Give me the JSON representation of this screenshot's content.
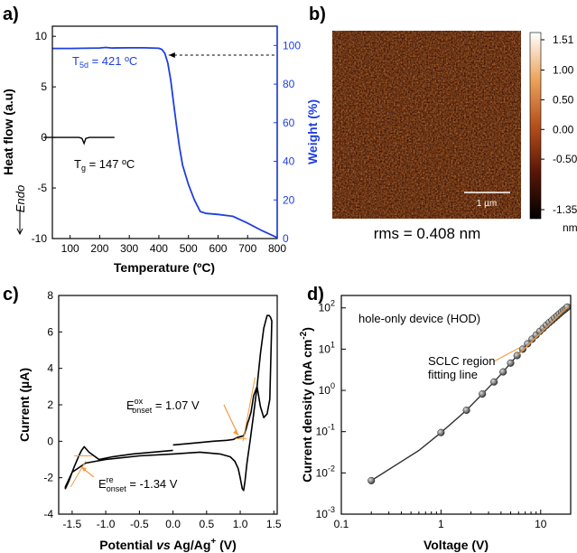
{
  "colors": {
    "curve_blue": "#1f3fe0",
    "orange": "#f29b3c",
    "black": "#000000"
  },
  "chart_data": [
    {
      "panel": "a)",
      "type": "line",
      "xlabel": "Temperature (ºC)",
      "xlim": [
        40,
        800
      ],
      "xticks": [
        "100",
        "200",
        "300",
        "400",
        "500",
        "600",
        "700",
        "800"
      ],
      "ylabel_left": "Heat flow (a.u)",
      "ylim_left": [
        -10,
        11
      ],
      "yticks_left": [
        "-10",
        "-5",
        "0",
        "5",
        "10"
      ],
      "ylabel_right": "Weight (%)",
      "ylim_right": [
        0,
        110
      ],
      "yticks_right": [
        "0",
        "20",
        "40",
        "60",
        "80",
        "100"
      ],
      "endo_label": "Endo",
      "annotations": {
        "t5d_base": "T",
        "t5d_sub": "5d",
        "t5d_val": " = 421 ºC",
        "tg_base": "T",
        "tg_sub": "g",
        "tg_val": " = 147 ºC"
      },
      "series": [
        {
          "axis": "right",
          "x": [
            40,
            100,
            150,
            200,
            220,
            240,
            300,
            350,
            400,
            410,
            420,
            430,
            440,
            450,
            460,
            470,
            480,
            500,
            520,
            540,
            560,
            600,
            650,
            700,
            750,
            800
          ],
          "y": [
            98.5,
            98.5,
            98.6,
            98.7,
            99.0,
            98.7,
            98.8,
            98.8,
            98.6,
            98.0,
            96.0,
            91.0,
            82.0,
            70.0,
            58.0,
            47.0,
            38.0,
            28.0,
            20.0,
            14.0,
            13.0,
            12.5,
            11.5,
            8.0,
            4.0,
            0.5
          ]
        },
        {
          "axis": "left",
          "x": [
            10,
            100,
            130,
            140,
            147,
            153,
            165,
            250
          ],
          "y": [
            0,
            0,
            0,
            -0.1,
            -0.6,
            -0.1,
            0,
            0
          ]
        }
      ]
    },
    {
      "panel": "b)",
      "type": "heatmap",
      "colorbar_ticks": [
        "1.51",
        "1.00",
        "0.50",
        "0.00",
        "-0.50",
        "-1.35"
      ],
      "colorbar_unit": "nm",
      "scalebar": "1 µm",
      "caption": "rms = 0.408 nm"
    },
    {
      "panel": "c)",
      "type": "line",
      "xlabel_parts": [
        "Potential ",
        "vs",
        " Ag/Ag",
        "+",
        " (V)"
      ],
      "xlim": [
        -1.7,
        1.55
      ],
      "xticks": [
        "-1.5",
        "-1.0",
        "-0.5",
        "0.0",
        "0.5",
        "1.0",
        "1.5"
      ],
      "ylabel": "Current (µA)",
      "ylim": [
        -4,
        8
      ],
      "yticks": [
        "-4",
        "-2",
        "0",
        "2",
        "4",
        "6",
        "8"
      ],
      "annotations": {
        "ox_base": "E",
        "ox_sup": "ox",
        "ox_sub": "onset",
        "ox_val": " = 1.07 V",
        "re_base": "E",
        "re_sup": "re",
        "re_sub": "onset",
        "re_val": " = -1.34 V"
      },
      "cv_x": [
        0.0,
        -0.3,
        -0.6,
        -0.9,
        -1.1,
        -1.25,
        -1.32,
        -1.36,
        -1.4,
        -1.48,
        -1.55,
        -1.6,
        -1.6,
        -1.5,
        -1.3,
        -1.0,
        -0.5,
        0.0,
        0.4,
        0.7,
        0.85,
        0.92,
        0.97,
        1.0,
        1.03,
        1.05,
        1.07,
        1.1,
        1.15,
        1.2,
        1.25,
        1.3,
        1.35,
        1.4,
        1.43,
        1.45,
        1.47,
        1.44,
        1.4,
        1.35,
        1.3,
        1.25,
        1.2,
        1.16,
        1.13,
        1.11,
        1.09,
        1.07,
        1.05,
        1.0,
        0.95,
        0.9,
        0.8,
        0.6,
        0.3,
        0.0
      ],
      "cv_y": [
        -0.5,
        -0.6,
        -0.7,
        -0.85,
        -1.0,
        -0.6,
        -0.3,
        -0.5,
        -0.8,
        -1.5,
        -2.2,
        -2.6,
        -2.5,
        -1.7,
        -1.2,
        -1.0,
        -0.8,
        -0.7,
        -0.6,
        -0.7,
        -0.85,
        -1.1,
        -1.5,
        -2.0,
        -2.6,
        -2.7,
        -2.2,
        -1.2,
        0.1,
        1.5,
        3.0,
        4.8,
        6.2,
        6.9,
        6.9,
        6.8,
        6.6,
        2.3,
        1.5,
        1.3,
        1.9,
        3.0,
        2.5,
        1.6,
        1.2,
        1.0,
        0.7,
        0.5,
        0.3,
        0.25,
        0.2,
        0.1,
        0.05,
        0.0,
        -0.1,
        -0.2
      ],
      "tangents": [
        {
          "x": [
            0.93,
            1.1
          ],
          "y": [
            0.15,
            0.15
          ]
        },
        {
          "x": [
            1.04,
            1.22
          ],
          "y": [
            0.0,
            3.5
          ]
        },
        {
          "x": [
            -1.47,
            -1.2
          ],
          "y": [
            -0.8,
            -0.8
          ]
        },
        {
          "x": [
            -1.52,
            -1.3
          ],
          "y": [
            -2.5,
            -1.1
          ]
        }
      ]
    },
    {
      "panel": "d)",
      "type": "scatter",
      "xlabel": "Voltage (V)",
      "xscale": "log",
      "xlim": [
        0.1,
        20
      ],
      "xticks": [
        "0.1",
        "1",
        "10"
      ],
      "ylabel_parts": [
        "Current density (mA cm",
        "-2",
        ")"
      ],
      "yscale": "log",
      "ylim": [
        0.001,
        200
      ],
      "yticks": [
        {
          "base": "10",
          "exp": "-3"
        },
        {
          "base": "10",
          "exp": "-2"
        },
        {
          "base": "10",
          "exp": "-1"
        },
        {
          "base": "10",
          "exp": "0"
        },
        {
          "base": "10",
          "exp": "1"
        },
        {
          "base": "10",
          "exp": "2"
        }
      ],
      "legend": "hole-only device (HOD)",
      "annotation_line1": "SCLC region",
      "annotation_line2": "fitting line",
      "x": [
        0.2,
        1.0,
        1.8,
        2.6,
        3.4,
        4.2,
        5.0,
        5.8,
        6.6,
        7.4,
        8.2,
        9.0,
        9.8,
        10.6,
        11.4,
        12.2,
        13.0,
        13.8,
        14.6,
        15.4,
        16.2,
        17.0,
        17.8,
        18.5
      ],
      "y": [
        0.0065,
        0.095,
        0.33,
        0.82,
        1.6,
        2.8,
        4.6,
        7.0,
        10.0,
        13.5,
        17.5,
        22.0,
        27.0,
        32.0,
        38.0,
        44.0,
        50.0,
        57.0,
        64.0,
        72.0,
        80.0,
        88.0,
        96.0,
        105.0
      ],
      "line_x": [
        0.2,
        0.6,
        1.0,
        1.8,
        2.6,
        3.4,
        4.2,
        5.0,
        6.6,
        8.2,
        9.8,
        11.4,
        13.0,
        14.6,
        16.2,
        18.5
      ],
      "line_y": [
        0.0065,
        0.035,
        0.095,
        0.33,
        0.82,
        1.6,
        2.8,
        4.6,
        10.0,
        17.5,
        27.0,
        38.0,
        50.0,
        64.0,
        80.0,
        105.0
      ],
      "fit_x": [
        6.0,
        19.0
      ],
      "fit_y": [
        7.5,
        110.0
      ]
    }
  ]
}
